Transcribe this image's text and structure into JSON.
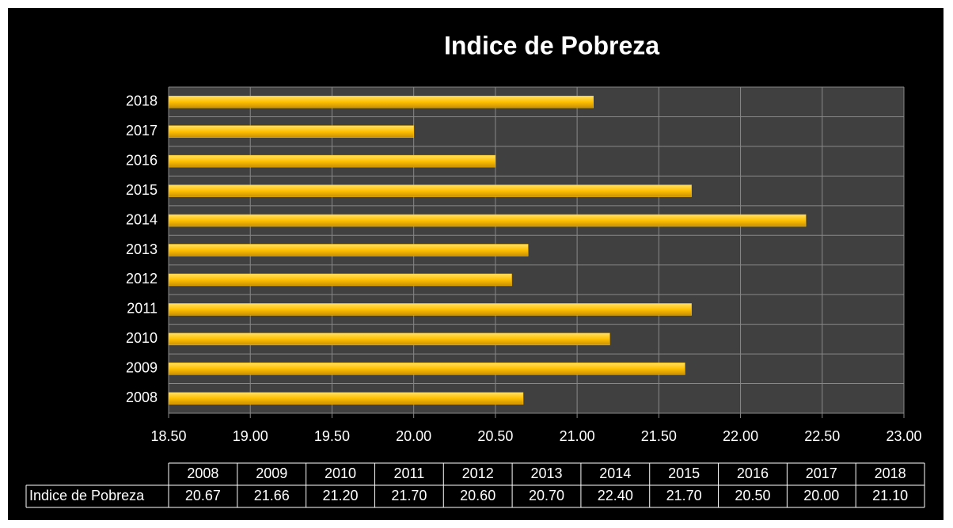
{
  "chart_data": {
    "type": "barh",
    "title": "Indice de Pobreza",
    "categories": [
      "2008",
      "2009",
      "2010",
      "2011",
      "2012",
      "2013",
      "2014",
      "2015",
      "2016",
      "2017",
      "2018"
    ],
    "series": [
      {
        "name": "Indice de Pobreza",
        "color": "#ffc000",
        "values": [
          20.67,
          21.66,
          21.2,
          21.7,
          20.6,
          20.7,
          22.4,
          21.7,
          20.5,
          20.0,
          21.1
        ],
        "value_labels": [
          "20.67",
          "21.66",
          "21.20",
          "21.70",
          "20.60",
          "20.70",
          "22.40",
          "21.70",
          "20.50",
          "20.00",
          "21.10"
        ]
      }
    ],
    "xlim": [
      18.5,
      23
    ],
    "xticks": [
      {
        "value": 18.5,
        "label": "18.50"
      },
      {
        "value": 19,
        "label": "19.00"
      },
      {
        "value": 19.5,
        "label": "19.50"
      },
      {
        "value": 20,
        "label": "20.00"
      },
      {
        "value": 20.5,
        "label": "20.50"
      },
      {
        "value": 21,
        "label": "21.00"
      },
      {
        "value": 21.5,
        "label": "21.50"
      },
      {
        "value": 22,
        "label": "22.00"
      },
      {
        "value": 22.5,
        "label": "22.50"
      },
      {
        "value": 23,
        "label": "23.00"
      }
    ],
    "grid": true
  }
}
